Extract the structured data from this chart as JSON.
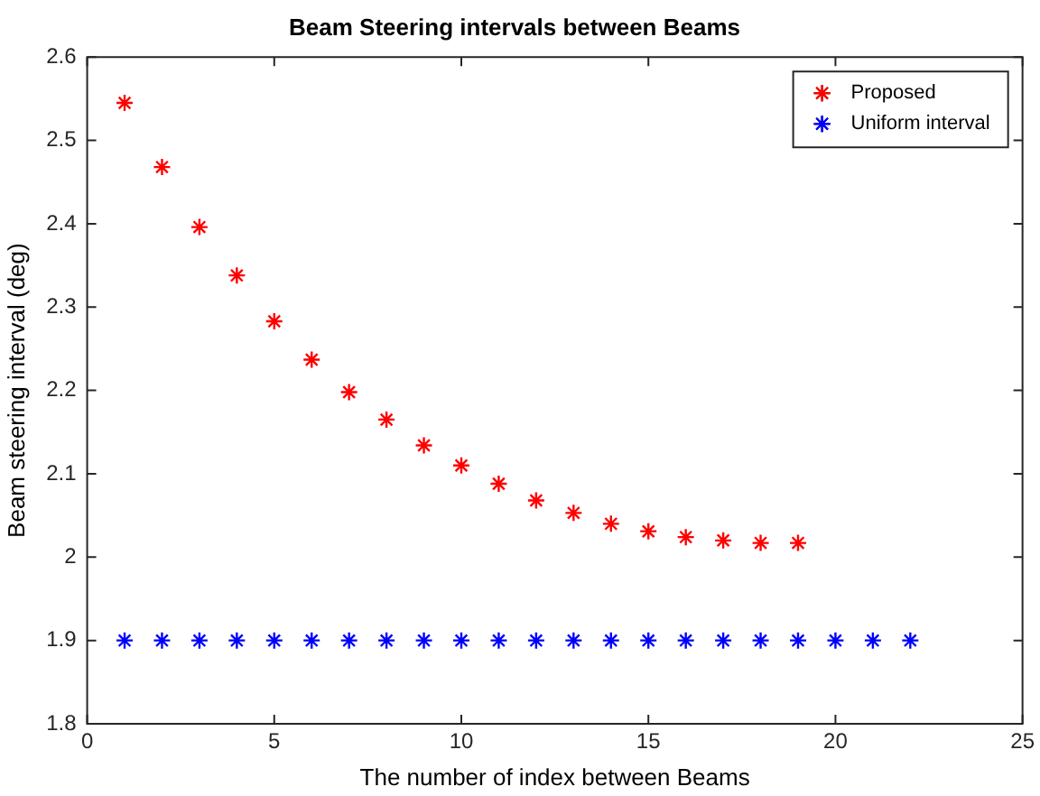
{
  "chart_data": {
    "type": "scatter",
    "title": "Beam Steering intervals between Beams",
    "xlabel": "The number of index between Beams",
    "ylabel": "Beam steering interval (deg)",
    "series": [
      {
        "name": "Proposed",
        "color": "#ff0000",
        "x": [
          1,
          2,
          3,
          4,
          5,
          6,
          7,
          8,
          9,
          10,
          11,
          12,
          13,
          14,
          15,
          16,
          17,
          18,
          19
        ],
        "values": [
          2.545,
          2.468,
          2.396,
          2.338,
          2.283,
          2.237,
          2.198,
          2.165,
          2.134,
          2.11,
          2.088,
          2.068,
          2.053,
          2.04,
          2.031,
          2.024,
          2.02,
          2.017,
          2.017
        ]
      },
      {
        "name": "Uniform interval",
        "color": "#0000ff",
        "x": [
          1,
          2,
          3,
          4,
          5,
          6,
          7,
          8,
          9,
          10,
          11,
          12,
          13,
          14,
          15,
          16,
          17,
          18,
          19,
          20,
          21,
          22
        ],
        "values": [
          1.9,
          1.9,
          1.9,
          1.9,
          1.9,
          1.9,
          1.9,
          1.9,
          1.9,
          1.9,
          1.9,
          1.9,
          1.9,
          1.9,
          1.9,
          1.9,
          1.9,
          1.9,
          1.9,
          1.9,
          1.9,
          1.9
        ]
      }
    ],
    "xlim": [
      0,
      25
    ],
    "xticks": [
      0,
      5,
      10,
      15,
      20,
      25
    ],
    "ylim": [
      1.8,
      2.6
    ],
    "yticks": [
      1.8,
      1.9,
      2,
      2.1,
      2.2,
      2.3,
      2.4,
      2.5,
      2.6
    ],
    "marker": "cross",
    "legend": "top right",
    "grid": false
  }
}
